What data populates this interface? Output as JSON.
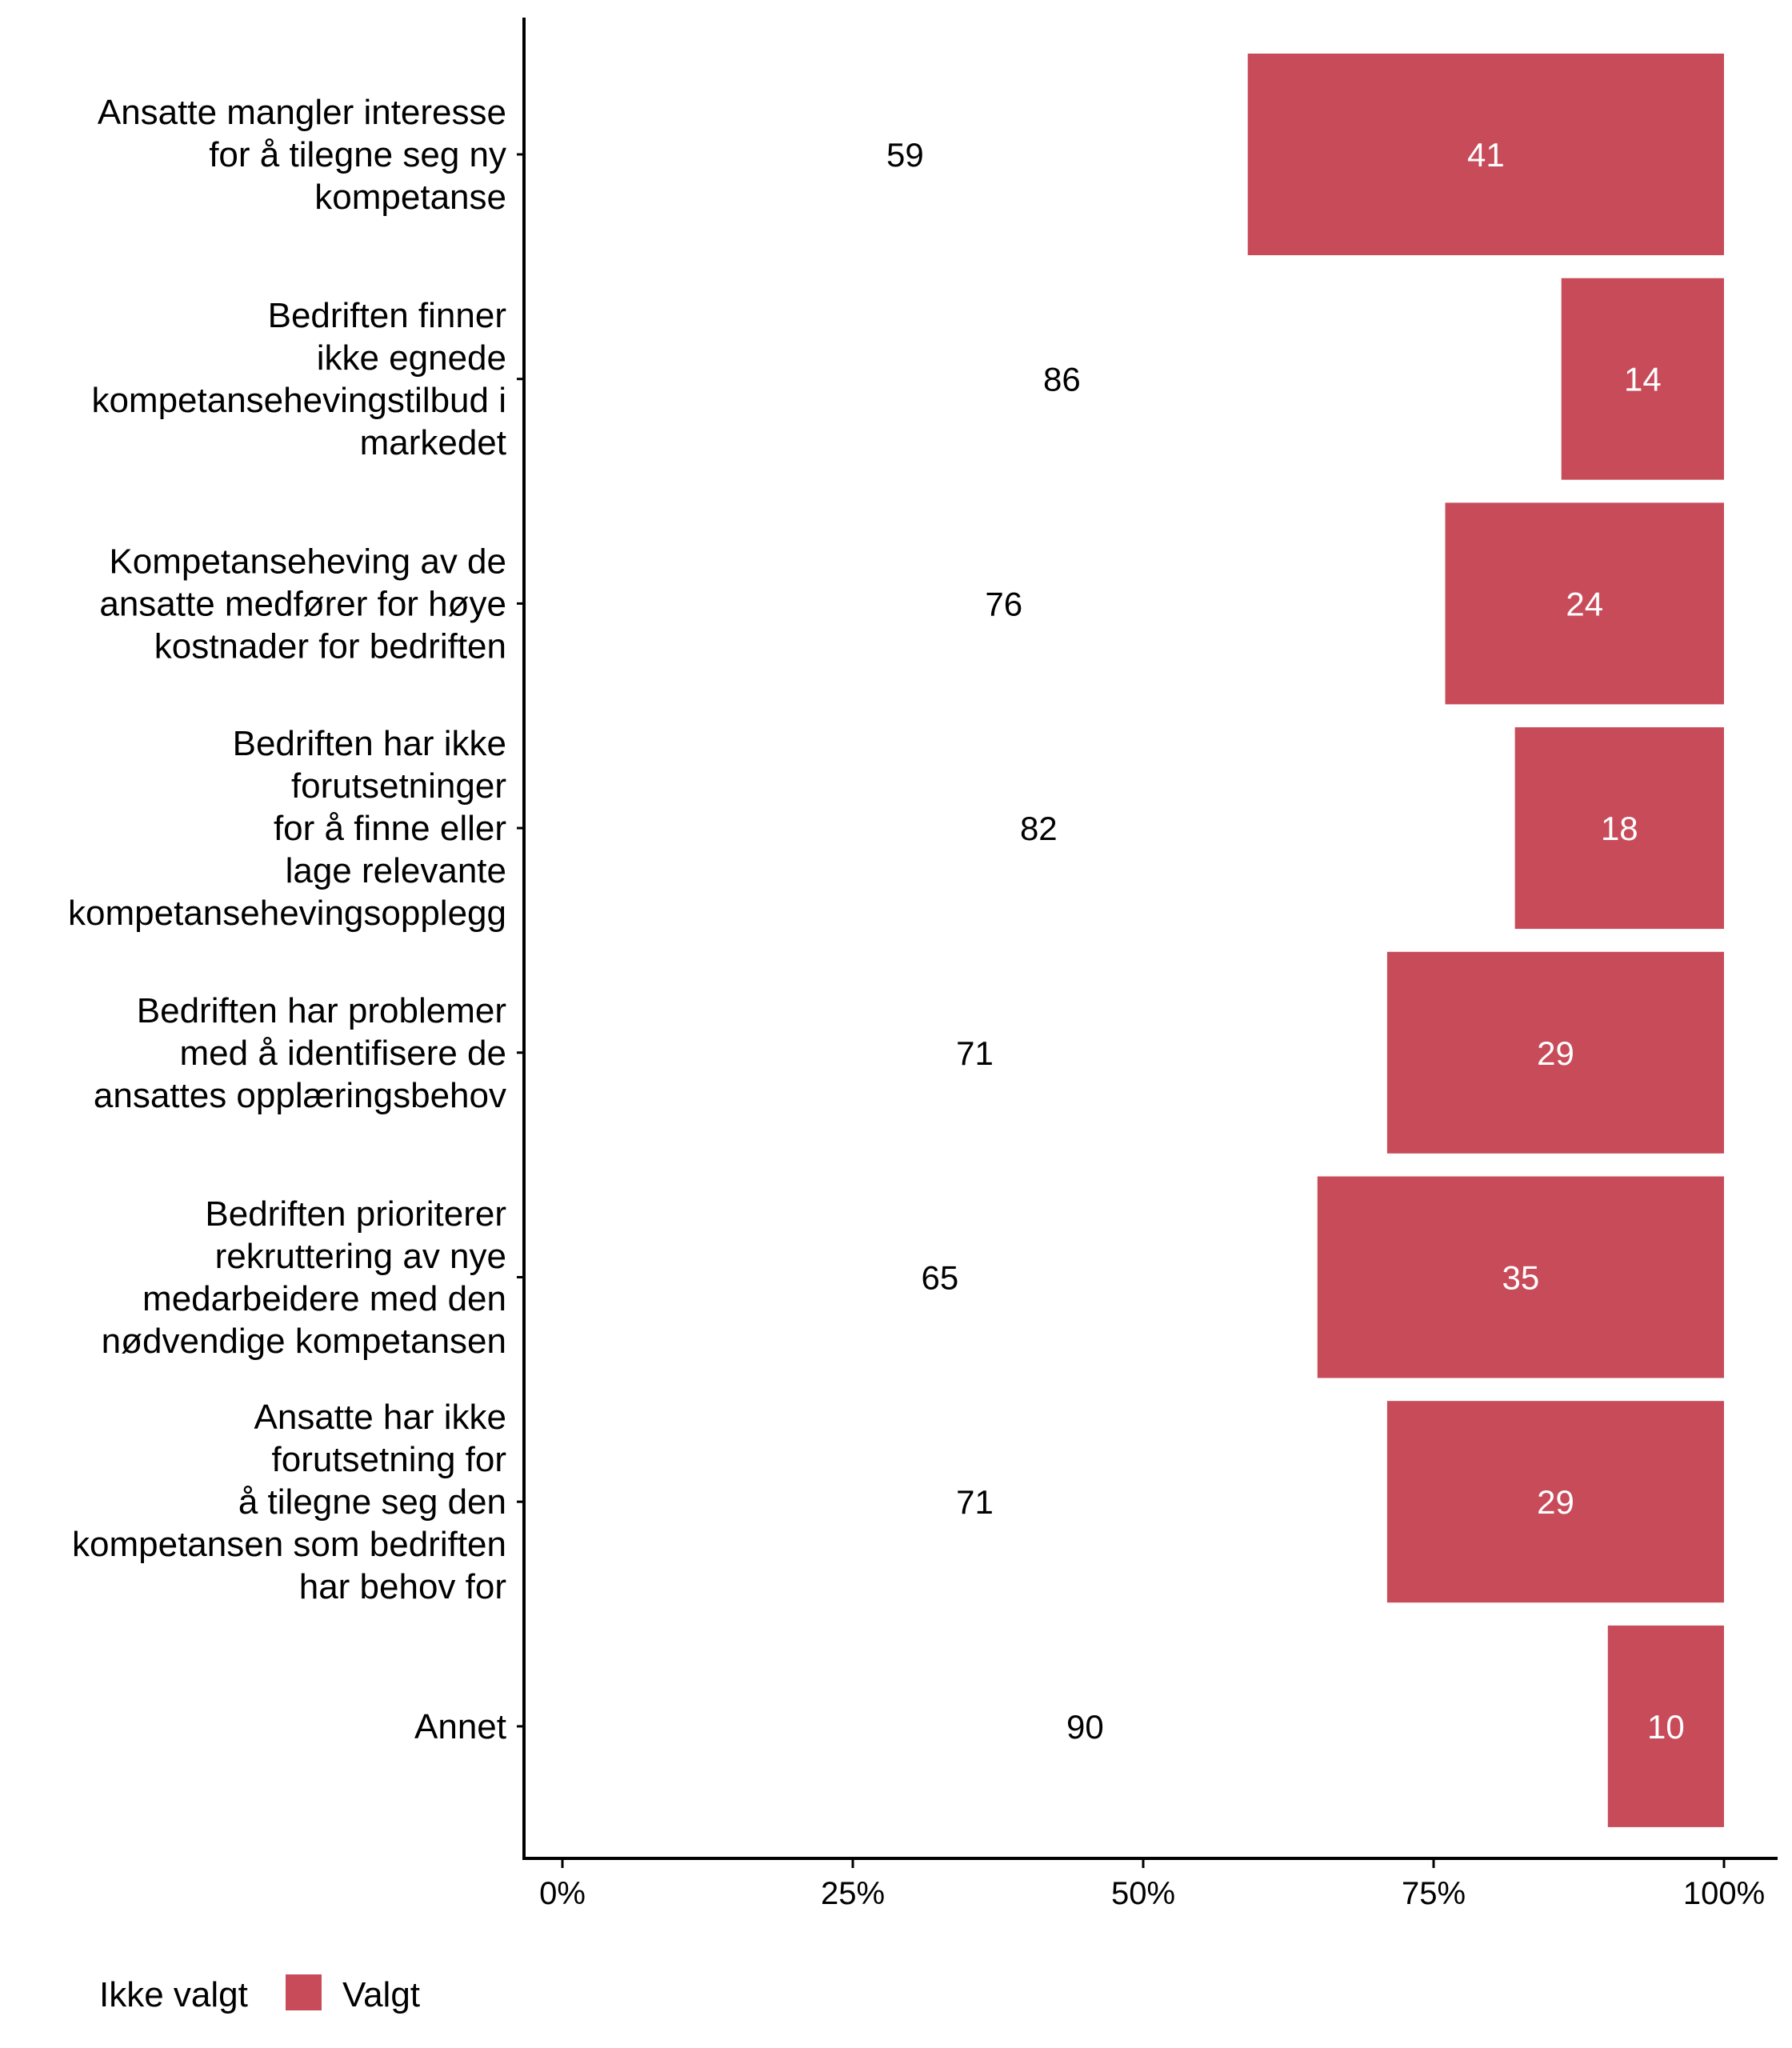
{
  "chart_data": {
    "type": "bar",
    "orientation": "horizontal",
    "stacked": true,
    "normalized": true,
    "title": "",
    "xlabel": "",
    "ylabel": "",
    "xlim": [
      0,
      100
    ],
    "x_ticks": [
      "0%",
      "25%",
      "50%",
      "75%",
      "100%"
    ],
    "x_tick_values": [
      0,
      25,
      50,
      75,
      100
    ],
    "grid": false,
    "legend_position": "bottom-left",
    "categories": [
      [
        "Ansatte mangler interesse",
        "for å tilegne seg ny",
        "kompetanse"
      ],
      [
        "Bedriften finner",
        "ikke egnede",
        "kompetansehevingstilbud i",
        "markedet"
      ],
      [
        "Kompetanseheving av de",
        "ansatte medfører for høye",
        "kostnader for bedriften"
      ],
      [
        "Bedriften har ikke",
        "forutsetninger",
        "for å finne eller",
        "lage relevante",
        "kompetansehevingsopplegg"
      ],
      [
        "Bedriften har problemer",
        "med å identifisere de",
        "ansattes opplæringsbehov"
      ],
      [
        "Bedriften prioriterer",
        "rekruttering av nye",
        "medarbeidere med den",
        "nødvendige kompetansen"
      ],
      [
        "Ansatte har ikke",
        "forutsetning for",
        "å tilegne seg den",
        "kompetansen som bedriften",
        "har behov for"
      ],
      [
        "Annet"
      ]
    ],
    "series": [
      {
        "name": "Ikke valgt",
        "color": "#FFFFFF",
        "label_color": "#000000",
        "values": [
          59,
          86,
          76,
          82,
          71,
          65,
          71,
          90
        ]
      },
      {
        "name": "Valgt",
        "color": "#C84B5A",
        "label_color": "#FFFFFF",
        "values": [
          41,
          14,
          24,
          18,
          29,
          35,
          29,
          10
        ]
      }
    ]
  }
}
